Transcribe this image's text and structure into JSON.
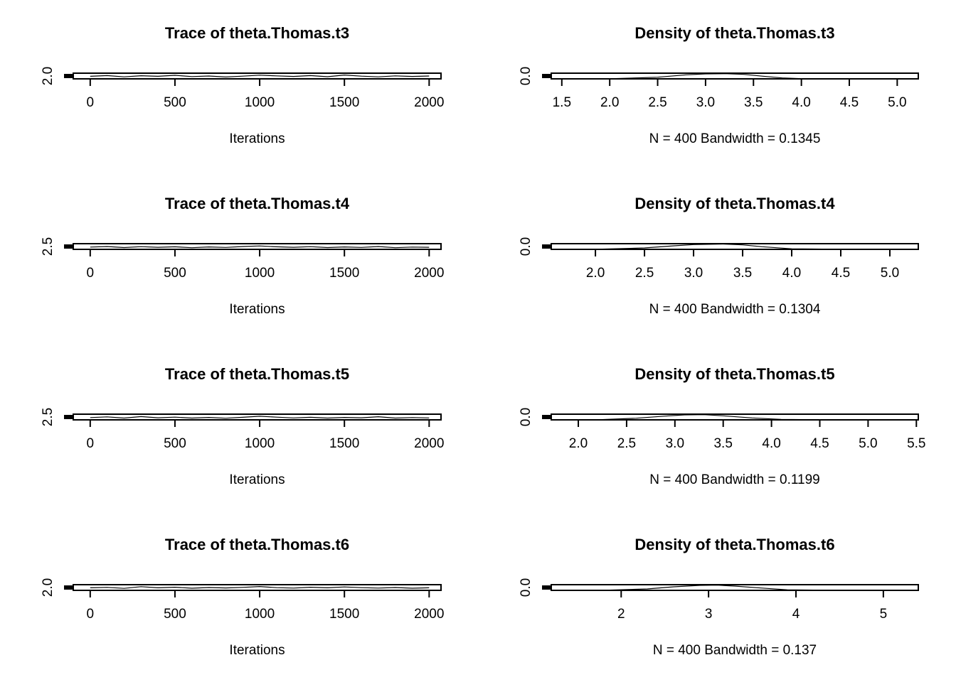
{
  "chart_data": [
    {
      "type": "line",
      "kind": "trace",
      "title": "Trace of theta.Thomas.t3",
      "xlabel": "Iterations",
      "xlim": [
        -100,
        2070
      ],
      "xticks": [
        0,
        500,
        1000,
        1500,
        2000
      ],
      "xtick_labels": [
        "0",
        "500",
        "1000",
        "1500",
        "2000"
      ],
      "ylim": [
        1.2,
        5.2
      ],
      "yticks": [
        2.0
      ],
      "ytick_labels": [
        "2.0"
      ],
      "series": [
        {
          "x": [
            0,
            100,
            200,
            300,
            400,
            500,
            600,
            700,
            800,
            900,
            1000,
            1100,
            1200,
            1300,
            1400,
            1500,
            1600,
            1700,
            1800,
            1900,
            2000
          ],
          "values": [
            3.0,
            3.5,
            2.6,
            3.4,
            3.0,
            3.7,
            2.8,
            3.2,
            2.5,
            3.1,
            3.8,
            3.3,
            2.9,
            3.5,
            2.7,
            3.9,
            3.1,
            2.6,
            3.3,
            2.9,
            3.2
          ]
        }
      ]
    },
    {
      "type": "area",
      "kind": "density",
      "title": "Density of theta.Thomas.t3",
      "xlabel": "N = 400   Bandwidth = 0.1345",
      "xlim": [
        1.39,
        5.22
      ],
      "xticks": [
        1.5,
        2.0,
        2.5,
        3.0,
        3.5,
        4.0,
        4.5,
        5.0
      ],
      "xtick_labels": [
        "1.5",
        "2.0",
        "2.5",
        "3.0",
        "3.5",
        "4.0",
        "4.5",
        "5.0"
      ],
      "ylim": [
        0,
        1.2
      ],
      "yticks": [
        0.0
      ],
      "ytick_labels": [
        "0.0"
      ],
      "series": [
        {
          "x": [
            1.5,
            2.0,
            2.5,
            2.8,
            3.0,
            3.2,
            3.4,
            3.6,
            3.8,
            4.0,
            4.5,
            5.1
          ],
          "values": [
            0.0,
            0.02,
            0.35,
            0.85,
            1.05,
            1.1,
            0.95,
            0.55,
            0.2,
            0.05,
            0.01,
            0.0
          ]
        }
      ]
    },
    {
      "type": "line",
      "kind": "trace",
      "title": "Trace of theta.Thomas.t4",
      "xlabel": "Iterations",
      "xlim": [
        -100,
        2070
      ],
      "xticks": [
        0,
        500,
        1000,
        1500,
        2000
      ],
      "xtick_labels": [
        "0",
        "500",
        "1000",
        "1500",
        "2000"
      ],
      "ylim": [
        1.7,
        5.5
      ],
      "yticks": [
        2.5
      ],
      "ytick_labels": [
        "2.5"
      ],
      "series": [
        {
          "x": [
            0,
            100,
            200,
            300,
            400,
            500,
            600,
            700,
            800,
            900,
            1000,
            1100,
            1200,
            1300,
            1400,
            1500,
            1600,
            1700,
            1800,
            1900,
            2000
          ],
          "values": [
            3.2,
            3.6,
            2.9,
            3.5,
            3.1,
            3.4,
            2.8,
            3.3,
            3.0,
            3.6,
            4.0,
            3.4,
            3.1,
            3.5,
            2.9,
            3.3,
            3.0,
            3.6,
            2.8,
            3.2,
            3.1
          ]
        }
      ]
    },
    {
      "type": "area",
      "kind": "density",
      "title": "Density of theta.Thomas.t4",
      "xlabel": "N = 400   Bandwidth = 0.1304",
      "xlim": [
        1.55,
        5.29
      ],
      "xticks": [
        2.0,
        2.5,
        3.0,
        3.5,
        4.0,
        4.5,
        5.0
      ],
      "xtick_labels": [
        "2.0",
        "2.5",
        "3.0",
        "3.5",
        "4.0",
        "4.5",
        "5.0"
      ],
      "ylim": [
        0,
        1.2
      ],
      "yticks": [
        0.0
      ],
      "ytick_labels": [
        "0.0"
      ],
      "series": [
        {
          "x": [
            1.6,
            2.0,
            2.5,
            2.8,
            3.0,
            3.3,
            3.5,
            3.7,
            4.0,
            4.5,
            5.2
          ],
          "values": [
            0.0,
            0.02,
            0.3,
            0.75,
            1.0,
            1.12,
            0.95,
            0.55,
            0.12,
            0.01,
            0.0
          ]
        }
      ]
    },
    {
      "type": "line",
      "kind": "trace",
      "title": "Trace of theta.Thomas.t5",
      "xlabel": "Iterations",
      "xlim": [
        -100,
        2070
      ],
      "xticks": [
        0,
        500,
        1000,
        1500,
        2000
      ],
      "xtick_labels": [
        "0",
        "500",
        "1000",
        "1500",
        "2000"
      ],
      "ylim": [
        1.8,
        5.6
      ],
      "yticks": [
        2.5
      ],
      "ytick_labels": [
        "2.5"
      ],
      "series": [
        {
          "x": [
            0,
            100,
            200,
            300,
            400,
            500,
            600,
            700,
            800,
            900,
            1000,
            1100,
            1200,
            1300,
            1400,
            1500,
            1600,
            1700,
            1800,
            1900,
            2000
          ],
          "values": [
            3.3,
            3.8,
            3.0,
            4.0,
            3.2,
            3.6,
            3.0,
            3.4,
            2.9,
            3.5,
            4.2,
            3.6,
            3.1,
            3.5,
            3.0,
            3.4,
            3.2,
            3.9,
            3.0,
            3.3,
            3.1
          ]
        }
      ]
    },
    {
      "type": "area",
      "kind": "density",
      "title": "Density of theta.Thomas.t5",
      "xlabel": "N = 400   Bandwidth = 0.1199",
      "xlim": [
        1.72,
        5.52
      ],
      "xticks": [
        2.0,
        2.5,
        3.0,
        3.5,
        4.0,
        4.5,
        5.0,
        5.5
      ],
      "xtick_labels": [
        "2.0",
        "2.5",
        "3.0",
        "3.5",
        "4.0",
        "4.5",
        "5.0",
        "5.5"
      ],
      "ylim": [
        0,
        1.2
      ],
      "yticks": [
        0.0
      ],
      "ytick_labels": [
        "0.0"
      ],
      "series": [
        {
          "x": [
            1.8,
            2.2,
            2.6,
            2.9,
            3.1,
            3.3,
            3.5,
            3.8,
            4.1,
            4.6,
            5.5
          ],
          "values": [
            0.0,
            0.03,
            0.35,
            0.8,
            1.05,
            1.1,
            0.85,
            0.4,
            0.1,
            0.01,
            0.0
          ]
        }
      ]
    },
    {
      "type": "line",
      "kind": "trace",
      "title": "Trace of theta.Thomas.t6",
      "xlabel": "Iterations",
      "xlim": [
        -100,
        2070
      ],
      "xticks": [
        0,
        500,
        1000,
        1500,
        2000
      ],
      "xtick_labels": [
        "0",
        "500",
        "1000",
        "1500",
        "2000"
      ],
      "ylim": [
        1.2,
        5.2
      ],
      "yticks": [
        2.0
      ],
      "ytick_labels": [
        "2.0"
      ],
      "series": [
        {
          "x": [
            0,
            100,
            200,
            300,
            400,
            500,
            600,
            700,
            800,
            900,
            1000,
            1100,
            1200,
            1300,
            1400,
            1500,
            1600,
            1700,
            1800,
            1900,
            2000
          ],
          "values": [
            3.0,
            3.3,
            2.6,
            3.8,
            3.0,
            3.4,
            2.7,
            3.2,
            2.9,
            3.3,
            3.9,
            3.1,
            2.8,
            3.4,
            3.0,
            3.6,
            3.1,
            2.8,
            3.2,
            2.7,
            3.0
          ]
        }
      ]
    },
    {
      "type": "area",
      "kind": "density",
      "title": "Density of theta.Thomas.t6",
      "xlabel": "N = 400   Bandwidth = 0.137",
      "xlim": [
        1.2,
        5.4
      ],
      "xticks": [
        2,
        3,
        4,
        5
      ],
      "xtick_labels": [
        "2",
        "3",
        "4",
        "5"
      ],
      "ylim": [
        0,
        1.2
      ],
      "yticks": [
        0.0
      ],
      "ytick_labels": [
        "0.0"
      ],
      "series": [
        {
          "x": [
            1.3,
            1.8,
            2.3,
            2.6,
            2.9,
            3.1,
            3.3,
            3.6,
            3.9,
            4.4,
            5.3
          ],
          "values": [
            0.0,
            0.02,
            0.3,
            0.75,
            1.05,
            1.1,
            0.9,
            0.5,
            0.12,
            0.01,
            0.0
          ]
        }
      ]
    }
  ]
}
